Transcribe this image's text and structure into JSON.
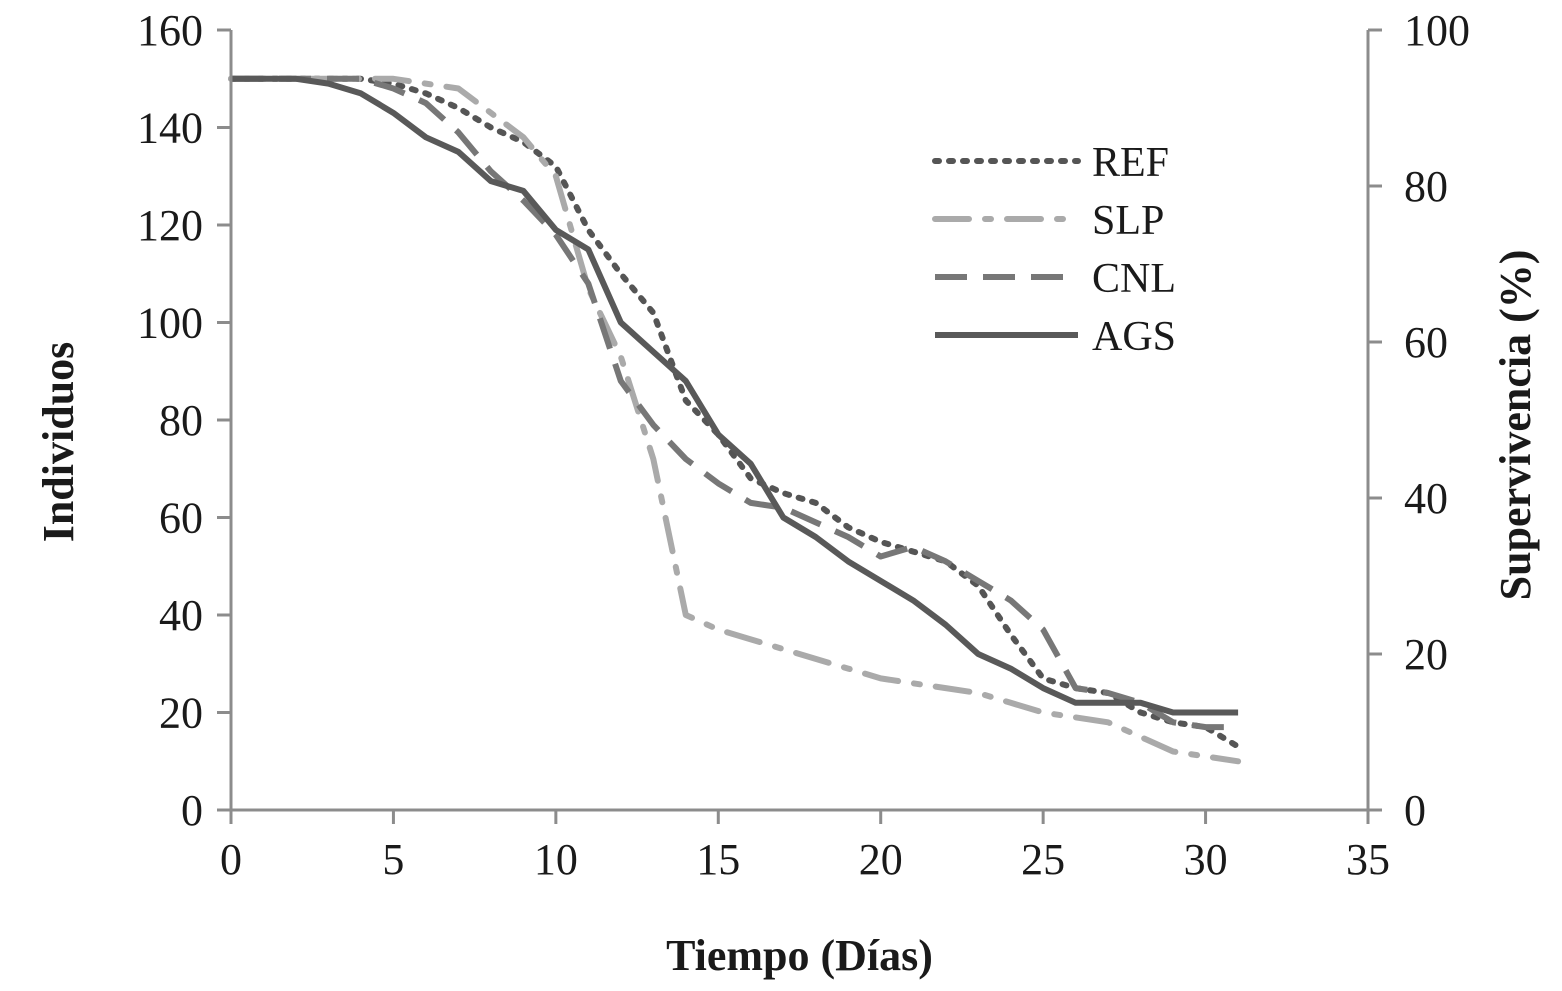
{
  "chart_data": {
    "type": "line",
    "xlabel": "Tiempo (Días)",
    "ylabel": "Individuos",
    "y2label": "Supervivencia (%)",
    "xlim": [
      0,
      35
    ],
    "ylim": [
      0,
      160
    ],
    "y2lim": [
      0,
      100
    ],
    "x_ticks": [
      0,
      5,
      10,
      15,
      20,
      25,
      30,
      35
    ],
    "y_ticks": [
      0,
      20,
      40,
      60,
      80,
      100,
      120,
      140,
      160
    ],
    "y2_ticks": [
      0,
      20,
      40,
      60,
      80,
      100
    ],
    "grid": false,
    "legend_position": "top-right",
    "series": [
      {
        "name": "REF",
        "style": "dotted",
        "color": "#555555",
        "x": [
          0,
          1,
          2,
          3,
          4,
          5,
          6,
          7,
          8,
          9,
          10,
          11,
          12,
          13,
          14,
          15,
          16,
          17,
          18,
          19,
          20,
          21,
          22,
          23,
          24,
          25,
          26,
          27,
          28,
          29,
          30,
          31
        ],
        "values": [
          150,
          150,
          150,
          150,
          150,
          149,
          147,
          144,
          140,
          137,
          132,
          119,
          110,
          102,
          84,
          77,
          68,
          65,
          63,
          58,
          55,
          53,
          51,
          46,
          36,
          27,
          25,
          24,
          20,
          18,
          17,
          13
        ]
      },
      {
        "name": "SLP",
        "style": "dash-dot",
        "color": "#aaaaaa",
        "x": [
          0,
          1,
          2,
          3,
          4,
          5,
          6,
          7,
          8,
          9,
          10,
          11,
          12,
          13,
          14,
          15,
          16,
          17,
          18,
          19,
          20,
          21,
          22,
          23,
          24,
          25,
          26,
          27,
          28,
          29,
          30,
          31
        ],
        "values": [
          150,
          150,
          150,
          150,
          150,
          150,
          149,
          148,
          143,
          138,
          130,
          107,
          93,
          72,
          40,
          37,
          35,
          33,
          31,
          29,
          27,
          26,
          25,
          24,
          22,
          20,
          19,
          18,
          15,
          12,
          11,
          10
        ]
      },
      {
        "name": "CNL",
        "style": "dashed",
        "color": "#777777",
        "x": [
          0,
          1,
          2,
          3,
          4,
          5,
          6,
          7,
          8,
          9,
          10,
          11,
          12,
          13,
          14,
          15,
          16,
          17,
          18,
          19,
          20,
          21,
          22,
          23,
          24,
          25,
          26,
          27,
          28,
          29,
          30,
          31
        ],
        "values": [
          150,
          150,
          150,
          150,
          150,
          148,
          145,
          139,
          131,
          125,
          118,
          108,
          88,
          79,
          72,
          67,
          63,
          62,
          59,
          56,
          52,
          54,
          51,
          47,
          43,
          37,
          25,
          24,
          22,
          18,
          17,
          17
        ]
      },
      {
        "name": "AGS",
        "style": "solid",
        "color": "#595959",
        "x": [
          0,
          1,
          2,
          3,
          4,
          5,
          6,
          7,
          8,
          9,
          10,
          11,
          12,
          13,
          14,
          15,
          16,
          17,
          18,
          19,
          20,
          21,
          22,
          23,
          24,
          25,
          26,
          27,
          28,
          29,
          30,
          31
        ],
        "values": [
          150,
          150,
          150,
          149,
          147,
          143,
          138,
          135,
          129,
          127,
          119,
          115,
          100,
          94,
          88,
          77,
          71,
          60,
          56,
          51,
          47,
          43,
          38,
          32,
          29,
          25,
          22,
          22,
          22,
          20,
          20,
          20
        ]
      }
    ]
  }
}
